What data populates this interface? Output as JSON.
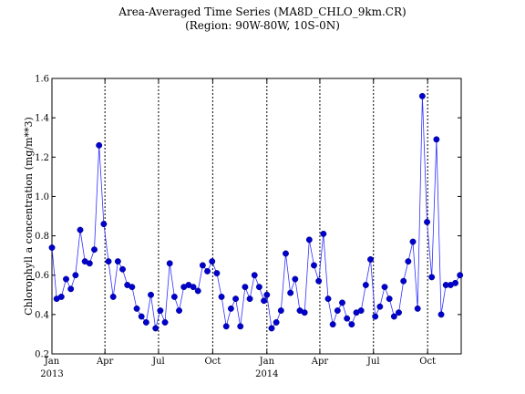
{
  "chart_data": {
    "type": "line",
    "title": "Area-Averaged Time Series (MA8D_CHLO_9km.CR)",
    "subtitle": "(Region: 90W-80W, 10S-0N)",
    "ylabel": "Chlorophyll a concentration  (mg/m**3)",
    "xlabel": "",
    "ylim": [
      0.2,
      1.6
    ],
    "yticks": [
      "0.2",
      "0.4",
      "0.6",
      "0.8",
      "1.0",
      "1.2",
      "1.4",
      "1.6"
    ],
    "xlim": [
      "2013-01-01",
      "2014-11-27"
    ],
    "xticks": [
      {
        "date": "2013-01-01",
        "label": "Jan",
        "sublabel": "2013"
      },
      {
        "date": "2013-04-01",
        "label": "Apr",
        "sublabel": ""
      },
      {
        "date": "2013-07-01",
        "label": "Jul",
        "sublabel": ""
      },
      {
        "date": "2013-10-01",
        "label": "Oct",
        "sublabel": ""
      },
      {
        "date": "2014-01-01",
        "label": "Jan",
        "sublabel": "2014"
      },
      {
        "date": "2014-04-01",
        "label": "Apr",
        "sublabel": ""
      },
      {
        "date": "2014-07-01",
        "label": "Jul",
        "sublabel": ""
      },
      {
        "date": "2014-10-01",
        "label": "Oct",
        "sublabel": ""
      }
    ],
    "vertical_dotted_lines": [
      "2013-04-01",
      "2013-07-01",
      "2013-10-01",
      "2014-01-01",
      "2014-04-01",
      "2014-07-01",
      "2014-10-01"
    ],
    "series": [
      {
        "color": "#0000cc",
        "x": [
          "2013-01-01",
          "2013-01-09",
          "2013-01-17",
          "2013-01-25",
          "2013-02-02",
          "2013-02-10",
          "2013-02-18",
          "2013-02-26",
          "2013-03-06",
          "2013-03-14",
          "2013-03-22",
          "2013-03-30",
          "2013-04-07",
          "2013-04-15",
          "2013-04-23",
          "2013-05-01",
          "2013-05-09",
          "2013-05-17",
          "2013-05-25",
          "2013-06-02",
          "2013-06-10",
          "2013-06-18",
          "2013-06-26",
          "2013-07-04",
          "2013-07-12",
          "2013-07-20",
          "2013-07-28",
          "2013-08-05",
          "2013-08-13",
          "2013-08-21",
          "2013-08-29",
          "2013-09-06",
          "2013-09-14",
          "2013-09-22",
          "2013-09-30",
          "2013-10-08",
          "2013-10-16",
          "2013-10-24",
          "2013-11-01",
          "2013-11-09",
          "2013-11-17",
          "2013-11-25",
          "2013-12-03",
          "2013-12-11",
          "2013-12-19",
          "2013-12-27",
          "2014-01-01",
          "2014-01-09",
          "2014-01-17",
          "2014-01-25",
          "2014-02-02",
          "2014-02-10",
          "2014-02-18",
          "2014-02-26",
          "2014-03-06",
          "2014-03-14",
          "2014-03-22",
          "2014-03-30",
          "2014-04-07",
          "2014-04-15",
          "2014-04-23",
          "2014-05-01",
          "2014-05-09",
          "2014-05-17",
          "2014-05-25",
          "2014-06-02",
          "2014-06-10",
          "2014-06-18",
          "2014-06-26",
          "2014-07-04",
          "2014-07-12",
          "2014-07-20",
          "2014-07-28",
          "2014-08-05",
          "2014-08-13",
          "2014-08-21",
          "2014-08-29",
          "2014-09-06",
          "2014-09-14",
          "2014-09-22",
          "2014-09-30",
          "2014-10-08",
          "2014-10-16",
          "2014-10-24",
          "2014-11-01",
          "2014-11-09",
          "2014-11-17",
          "2014-11-25"
        ],
        "y": [
          0.74,
          0.48,
          0.49,
          0.58,
          0.53,
          0.6,
          0.83,
          0.67,
          0.66,
          0.73,
          1.26,
          0.86,
          0.67,
          0.49,
          0.67,
          0.63,
          0.55,
          0.54,
          0.43,
          0.39,
          0.36,
          0.5,
          0.33,
          0.42,
          0.36,
          0.66,
          0.49,
          0.42,
          0.54,
          0.55,
          0.54,
          0.52,
          0.65,
          0.62,
          0.67,
          0.61,
          0.49,
          0.34,
          0.43,
          0.48,
          0.34,
          0.54,
          0.48,
          0.6,
          0.54,
          0.47,
          0.5,
          0.33,
          0.36,
          0.42,
          0.71,
          0.51,
          0.58,
          0.42,
          0.41,
          0.78,
          0.65,
          0.57,
          0.81,
          0.48,
          0.35,
          0.42,
          0.46,
          0.38,
          0.35,
          0.41,
          0.42,
          0.55,
          0.68,
          0.39,
          0.44,
          0.54,
          0.48,
          0.39,
          0.41,
          0.57,
          0.67,
          0.77,
          0.43,
          1.51,
          0.87,
          0.59,
          1.29,
          0.4,
          0.55,
          0.55,
          0.56,
          0.6
        ]
      }
    ],
    "grid": false,
    "legend": "none"
  }
}
